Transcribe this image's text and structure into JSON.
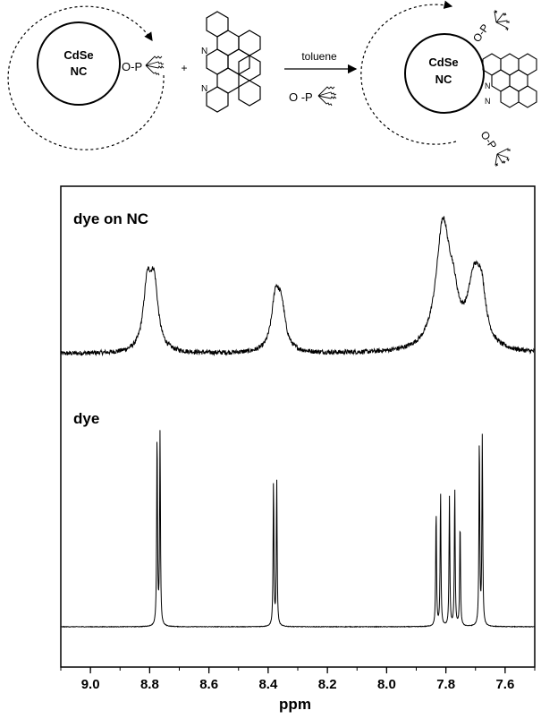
{
  "scheme": {
    "left_particle": [
      "CdSe",
      "NC"
    ],
    "right_particle": [
      "CdSe",
      "NC"
    ],
    "ligand_label": "O-P",
    "free_ligand_label": "O -P",
    "plus": "+",
    "arrow_label": "toluene",
    "nitrogen": "N"
  },
  "chart_data": {
    "type": "line",
    "xlabel": "ppm",
    "xlim": [
      9.1,
      7.5
    ],
    "x_reversed": true,
    "x_ticks": [
      9.0,
      8.8,
      8.6,
      8.4,
      8.2,
      8.0,
      7.8,
      7.6
    ],
    "x_tick_labels": [
      "9.0",
      "8.8",
      "8.6",
      "8.4",
      "8.2",
      "8.0",
      "7.8",
      "7.6"
    ],
    "yticks_shown": false,
    "series": [
      {
        "name": "dye on NC",
        "kind": "broadened, noisy",
        "baseline": 0.32,
        "noise": 0.012,
        "peaks": [
          {
            "ppm": 8.808,
            "height": 0.325,
            "width": 0.016
          },
          {
            "ppm": 8.785,
            "height": 0.33,
            "width": 0.016
          },
          {
            "ppm": 8.375,
            "height": 0.27,
            "width": 0.016
          },
          {
            "ppm": 8.355,
            "height": 0.2,
            "width": 0.016
          },
          {
            "ppm": 7.81,
            "height": 0.64,
            "width": 0.028
          },
          {
            "ppm": 7.775,
            "height": 0.17,
            "width": 0.02
          },
          {
            "ppm": 7.705,
            "height": 0.33,
            "width": 0.026
          },
          {
            "ppm": 7.68,
            "height": 0.23,
            "width": 0.018
          }
        ]
      },
      {
        "name": "dye",
        "kind": "sharp",
        "baseline": 0.0,
        "noise": 0.0015,
        "peaks": [
          {
            "ppm": 8.775,
            "height": 0.96,
            "width": 0.0016
          },
          {
            "ppm": 8.765,
            "height": 0.96,
            "width": 0.0016
          },
          {
            "ppm": 8.382,
            "height": 0.72,
            "width": 0.0016
          },
          {
            "ppm": 8.371,
            "height": 0.72,
            "width": 0.0016
          },
          {
            "ppm": 7.833,
            "height": 0.58,
            "width": 0.0016
          },
          {
            "ppm": 7.818,
            "height": 0.67,
            "width": 0.0016
          },
          {
            "ppm": 7.788,
            "height": 0.64,
            "width": 0.0016
          },
          {
            "ppm": 7.77,
            "height": 0.69,
            "width": 0.0016
          },
          {
            "ppm": 7.752,
            "height": 0.52,
            "width": 0.0016
          },
          {
            "ppm": 7.687,
            "height": 0.94,
            "width": 0.0016
          },
          {
            "ppm": 7.677,
            "height": 0.94,
            "width": 0.0016
          }
        ]
      }
    ]
  }
}
